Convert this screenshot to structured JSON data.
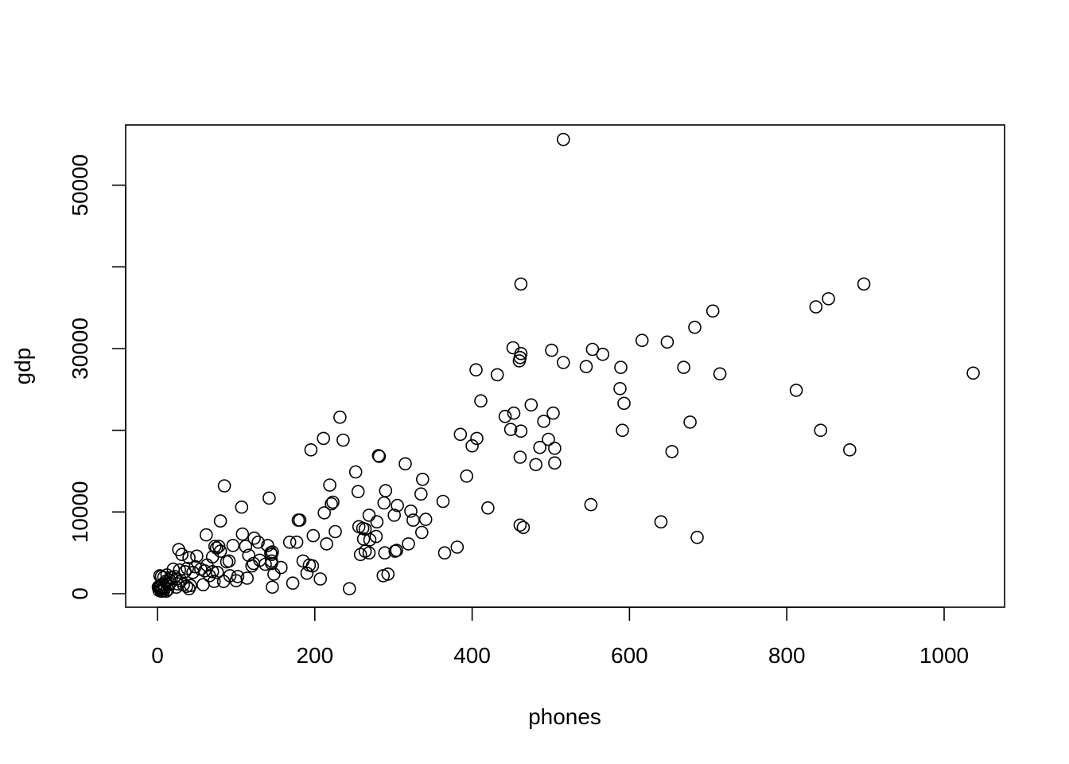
{
  "chart_data": {
    "type": "scatter",
    "title": "",
    "xlabel": "phones",
    "ylabel": "gdp",
    "xlim": [
      -20,
      1040
    ],
    "ylim": [
      -3500,
      57000
    ],
    "x_ticks": [
      0,
      200,
      400,
      600,
      800,
      1000
    ],
    "y_ticks": [
      0,
      10000,
      30000,
      50000
    ],
    "y_tick_marks": [
      0,
      10000,
      20000,
      30000,
      40000,
      50000
    ],
    "marker": "open-circle",
    "grid": false,
    "legend": "none",
    "points": [
      [
        516,
        55600
      ],
      [
        462,
        37900
      ],
      [
        898,
        37900
      ],
      [
        853,
        36100
      ],
      [
        837,
        35100
      ],
      [
        706,
        34600
      ],
      [
        683,
        32600
      ],
      [
        616,
        31000
      ],
      [
        648,
        30800
      ],
      [
        452,
        30100
      ],
      [
        501,
        29800
      ],
      [
        553,
        29900
      ],
      [
        566,
        29300
      ],
      [
        462,
        29400
      ],
      [
        461,
        28900
      ],
      [
        460,
        28500
      ],
      [
        516,
        28300
      ],
      [
        545,
        27800
      ],
      [
        589,
        27700
      ],
      [
        669,
        27700
      ],
      [
        405,
        27400
      ],
      [
        432,
        26800
      ],
      [
        715,
        26900
      ],
      [
        1037,
        27000
      ],
      [
        588,
        25100
      ],
      [
        812,
        24900
      ],
      [
        411,
        23600
      ],
      [
        593,
        23300
      ],
      [
        475,
        23100
      ],
      [
        453,
        22100
      ],
      [
        503,
        22100
      ],
      [
        442,
        21700
      ],
      [
        491,
        21100
      ],
      [
        677,
        21000
      ],
      [
        232,
        21600
      ],
      [
        449,
        20100
      ],
      [
        462,
        19900
      ],
      [
        591,
        20000
      ],
      [
        843,
        20000
      ],
      [
        385,
        19500
      ],
      [
        211,
        19000
      ],
      [
        236,
        18800
      ],
      [
        497,
        18900
      ],
      [
        406,
        19000
      ],
      [
        400,
        18100
      ],
      [
        486,
        17900
      ],
      [
        505,
        17800
      ],
      [
        195,
        17600
      ],
      [
        880,
        17600
      ],
      [
        654,
        17400
      ],
      [
        281,
        16900
      ],
      [
        282,
        16800
      ],
      [
        461,
        16700
      ],
      [
        505,
        16000
      ],
      [
        481,
        15800
      ],
      [
        315,
        15900
      ],
      [
        252,
        14900
      ],
      [
        393,
        14400
      ],
      [
        337,
        14000
      ],
      [
        219,
        13300
      ],
      [
        85,
        13200
      ],
      [
        255,
        12500
      ],
      [
        335,
        12200
      ],
      [
        290,
        12600
      ],
      [
        142,
        11700
      ],
      [
        363,
        11300
      ],
      [
        223,
        11200
      ],
      [
        221,
        11000
      ],
      [
        288,
        11100
      ],
      [
        305,
        10800
      ],
      [
        107,
        10600
      ],
      [
        420,
        10500
      ],
      [
        551,
        10900
      ],
      [
        322,
        10100
      ],
      [
        212,
        9900
      ],
      [
        301,
        9600
      ],
      [
        341,
        9100
      ],
      [
        325,
        9000
      ],
      [
        179,
        9000
      ],
      [
        181,
        9000
      ],
      [
        80,
        8900
      ],
      [
        269,
        9600
      ],
      [
        279,
        8800
      ],
      [
        640,
        8800
      ],
      [
        461,
        8400
      ],
      [
        465,
        8100
      ],
      [
        256,
        8200
      ],
      [
        261,
        8000
      ],
      [
        264,
        7900
      ],
      [
        226,
        7600
      ],
      [
        336,
        7500
      ],
      [
        62,
        7200
      ],
      [
        108,
        7300
      ],
      [
        198,
        7100
      ],
      [
        278,
        7000
      ],
      [
        686,
        6900
      ],
      [
        262,
        6700
      ],
      [
        270,
        6600
      ],
      [
        123,
        6800
      ],
      [
        128,
        6300
      ],
      [
        168,
        6300
      ],
      [
        177,
        6300
      ],
      [
        215,
        6100
      ],
      [
        319,
        6100
      ],
      [
        96,
        5900
      ],
      [
        73,
        5800
      ],
      [
        78,
        5800
      ],
      [
        75,
        5600
      ],
      [
        112,
        5800
      ],
      [
        140,
        5900
      ],
      [
        381,
        5700
      ],
      [
        27,
        5400
      ],
      [
        80,
        5200
      ],
      [
        146,
        5100
      ],
      [
        144,
        5000
      ],
      [
        145,
        4800
      ],
      [
        302,
        5200
      ],
      [
        304,
        5300
      ],
      [
        289,
        5000
      ],
      [
        269,
        5000
      ],
      [
        264,
        5200
      ],
      [
        258,
        4800
      ],
      [
        365,
        5000
      ],
      [
        70,
        4500
      ],
      [
        116,
        4700
      ],
      [
        31,
        4800
      ],
      [
        50,
        4600
      ],
      [
        40,
        4400
      ],
      [
        91,
        4000
      ],
      [
        88,
        3900
      ],
      [
        122,
        3700
      ],
      [
        130,
        4100
      ],
      [
        185,
        4000
      ],
      [
        193,
        3500
      ],
      [
        197,
        3400
      ],
      [
        120,
        3400
      ],
      [
        145,
        4000
      ],
      [
        137,
        3600
      ],
      [
        145,
        3700
      ],
      [
        157,
        3200
      ],
      [
        63,
        3500
      ],
      [
        48,
        3300
      ],
      [
        55,
        3000
      ],
      [
        38,
        3100
      ],
      [
        20,
        3000
      ],
      [
        28,
        2900
      ],
      [
        35,
        2700
      ],
      [
        45,
        2600
      ],
      [
        60,
        2800
      ],
      [
        70,
        2700
      ],
      [
        76,
        2600
      ],
      [
        92,
        2200
      ],
      [
        102,
        2100
      ],
      [
        66,
        2200
      ],
      [
        148,
        2400
      ],
      [
        190,
        2500
      ],
      [
        114,
        1900
      ],
      [
        207,
        1800
      ],
      [
        293,
        2400
      ],
      [
        287,
        2200
      ],
      [
        100,
        1600
      ],
      [
        84,
        1500
      ],
      [
        72,
        1500
      ],
      [
        22,
        2100
      ],
      [
        24,
        1800
      ],
      [
        30,
        1600
      ],
      [
        18,
        2000
      ],
      [
        15,
        1700
      ],
      [
        12,
        2300
      ],
      [
        8,
        2000
      ],
      [
        5,
        2100
      ],
      [
        3,
        2200
      ],
      [
        10,
        1500
      ],
      [
        7,
        1200
      ],
      [
        4,
        1000
      ],
      [
        2,
        900
      ],
      [
        1,
        800
      ],
      [
        3,
        700
      ],
      [
        6,
        600
      ],
      [
        9,
        700
      ],
      [
        14,
        1100
      ],
      [
        16,
        1300
      ],
      [
        26,
        1200
      ],
      [
        33,
        1100
      ],
      [
        37,
        900
      ],
      [
        42,
        1000
      ],
      [
        58,
        1100
      ],
      [
        13,
        500
      ],
      [
        8,
        400
      ],
      [
        4,
        500
      ],
      [
        24,
        800
      ],
      [
        172,
        1300
      ],
      [
        146,
        800
      ],
      [
        244,
        600
      ],
      [
        40,
        600
      ],
      [
        11,
        300
      ],
      [
        5,
        300
      ],
      [
        2,
        400
      ]
    ]
  }
}
